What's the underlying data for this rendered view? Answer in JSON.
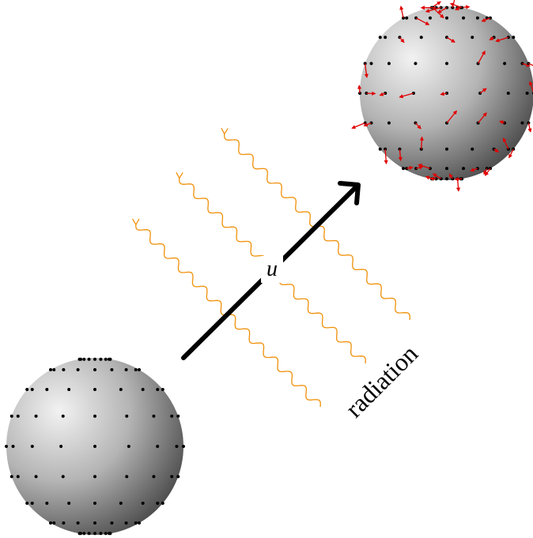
{
  "labels": {
    "velocity": "u",
    "radiation": "radiation"
  }
}
